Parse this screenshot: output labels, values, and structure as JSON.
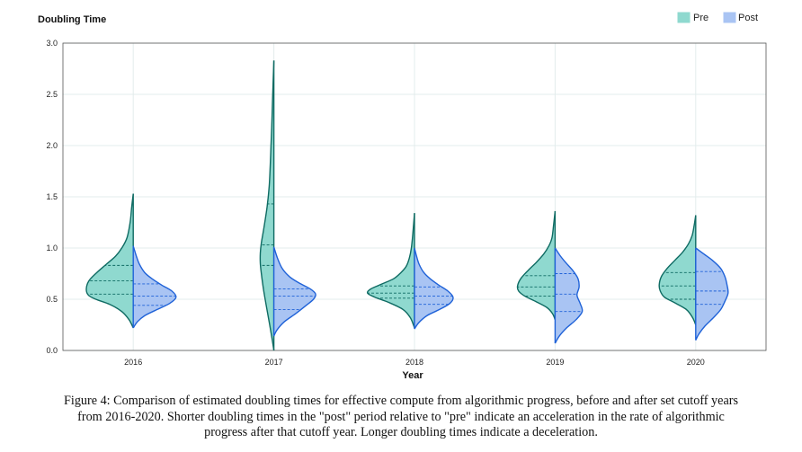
{
  "chart_data": {
    "type": "split-violin",
    "title": "Doubling Time",
    "xlabel": "Year",
    "ylabel": "Doubling Time",
    "ylim": [
      0,
      3.0
    ],
    "yticks": [
      "0.0",
      "0.5",
      "1.0",
      "1.5",
      "2.0",
      "2.5",
      "3.0"
    ],
    "categories": [
      "2016",
      "2017",
      "2018",
      "2019",
      "2020"
    ],
    "legend": {
      "position": "top-right",
      "entries": [
        "Pre",
        "Post"
      ]
    },
    "colors": {
      "pre_fill": "#8fd9cf",
      "pre_stroke": "#0f6b63",
      "post_fill": "#a9c4f3",
      "post_stroke": "#1f62d8",
      "grid": "#e3ecec"
    },
    "series": [
      {
        "name": "Pre",
        "violins": [
          {
            "year": "2016",
            "min": 0.22,
            "max": 1.53,
            "quartiles": [
              0.55,
              0.68,
              0.83
            ],
            "profile": [
              [
                0.22,
                0.0
              ],
              [
                0.3,
                0.08
              ],
              [
                0.38,
                0.22
              ],
              [
                0.45,
                0.45
              ],
              [
                0.5,
                0.72
              ],
              [
                0.54,
                0.86
              ],
              [
                0.6,
                0.9
              ],
              [
                0.68,
                0.85
              ],
              [
                0.76,
                0.7
              ],
              [
                0.84,
                0.52
              ],
              [
                0.92,
                0.34
              ],
              [
                1.0,
                0.22
              ],
              [
                1.1,
                0.12
              ],
              [
                1.25,
                0.06
              ],
              [
                1.4,
                0.03
              ],
              [
                1.53,
                0.0
              ]
            ]
          },
          {
            "year": "2017",
            "min": 0.0,
            "max": 2.83,
            "quartiles": [
              0.83,
              1.03,
              1.43
            ],
            "profile": [
              [
                0.0,
                0.0
              ],
              [
                0.1,
                0.03
              ],
              [
                0.25,
                0.08
              ],
              [
                0.45,
                0.15
              ],
              [
                0.6,
                0.2
              ],
              [
                0.75,
                0.24
              ],
              [
                0.85,
                0.26
              ],
              [
                0.95,
                0.26
              ],
              [
                1.05,
                0.24
              ],
              [
                1.2,
                0.19
              ],
              [
                1.4,
                0.13
              ],
              [
                1.6,
                0.09
              ],
              [
                1.8,
                0.07
              ],
              [
                2.0,
                0.055
              ],
              [
                2.2,
                0.04
              ],
              [
                2.45,
                0.025
              ],
              [
                2.65,
                0.012
              ],
              [
                2.83,
                0.0
              ]
            ]
          },
          {
            "year": "2018",
            "min": 0.22,
            "max": 1.34,
            "quartiles": [
              0.51,
              0.56,
              0.63
            ],
            "profile": [
              [
                0.22,
                0.0
              ],
              [
                0.32,
                0.08
              ],
              [
                0.4,
                0.22
              ],
              [
                0.47,
                0.5
              ],
              [
                0.52,
                0.76
              ],
              [
                0.56,
                0.9
              ],
              [
                0.6,
                0.84
              ],
              [
                0.65,
                0.62
              ],
              [
                0.7,
                0.4
              ],
              [
                0.76,
                0.26
              ],
              [
                0.82,
                0.16
              ],
              [
                0.9,
                0.1
              ],
              [
                1.0,
                0.06
              ],
              [
                1.15,
                0.03
              ],
              [
                1.34,
                0.0
              ]
            ]
          },
          {
            "year": "2019",
            "min": 0.3,
            "max": 1.36,
            "quartiles": [
              0.53,
              0.62,
              0.73
            ],
            "profile": [
              [
                0.3,
                0.0
              ],
              [
                0.36,
                0.05
              ],
              [
                0.42,
                0.16
              ],
              [
                0.48,
                0.38
              ],
              [
                0.53,
                0.58
              ],
              [
                0.58,
                0.7
              ],
              [
                0.63,
                0.72
              ],
              [
                0.7,
                0.66
              ],
              [
                0.78,
                0.52
              ],
              [
                0.86,
                0.36
              ],
              [
                0.94,
                0.22
              ],
              [
                1.02,
                0.12
              ],
              [
                1.1,
                0.06
              ],
              [
                1.22,
                0.03
              ],
              [
                1.36,
                0.0
              ]
            ]
          },
          {
            "year": "2020",
            "min": 0.25,
            "max": 1.32,
            "quartiles": [
              0.5,
              0.63,
              0.76
            ],
            "profile": [
              [
                0.25,
                0.0
              ],
              [
                0.32,
                0.06
              ],
              [
                0.4,
                0.18
              ],
              [
                0.47,
                0.42
              ],
              [
                0.52,
                0.6
              ],
              [
                0.58,
                0.68
              ],
              [
                0.64,
                0.7
              ],
              [
                0.72,
                0.66
              ],
              [
                0.8,
                0.55
              ],
              [
                0.88,
                0.4
              ],
              [
                0.96,
                0.25
              ],
              [
                1.04,
                0.14
              ],
              [
                1.12,
                0.07
              ],
              [
                1.22,
                0.03
              ],
              [
                1.32,
                0.0
              ]
            ]
          }
        ]
      },
      {
        "name": "Post",
        "violins": [
          {
            "year": "2016",
            "min": 0.22,
            "max": 1.02,
            "quartiles": [
              0.44,
              0.53,
              0.65
            ],
            "profile": [
              [
                0.22,
                0.0
              ],
              [
                0.28,
                0.08
              ],
              [
                0.34,
                0.22
              ],
              [
                0.4,
                0.46
              ],
              [
                0.46,
                0.7
              ],
              [
                0.52,
                0.82
              ],
              [
                0.58,
                0.74
              ],
              [
                0.64,
                0.54
              ],
              [
                0.7,
                0.36
              ],
              [
                0.76,
                0.22
              ],
              [
                0.84,
                0.12
              ],
              [
                0.92,
                0.06
              ],
              [
                1.02,
                0.0
              ]
            ]
          },
          {
            "year": "2017",
            "min": 0.14,
            "max": 1.01,
            "quartiles": [
              0.4,
              0.53,
              0.6
            ],
            "profile": [
              [
                0.14,
                0.0
              ],
              [
                0.2,
                0.06
              ],
              [
                0.28,
                0.2
              ],
              [
                0.36,
                0.42
              ],
              [
                0.44,
                0.62
              ],
              [
                0.5,
                0.76
              ],
              [
                0.55,
                0.8
              ],
              [
                0.6,
                0.7
              ],
              [
                0.66,
                0.48
              ],
              [
                0.72,
                0.3
              ],
              [
                0.8,
                0.16
              ],
              [
                0.9,
                0.07
              ],
              [
                1.01,
                0.0
              ]
            ]
          },
          {
            "year": "2018",
            "min": 0.21,
            "max": 1.0,
            "quartiles": [
              0.45,
              0.53,
              0.62
            ],
            "profile": [
              [
                0.21,
                0.0
              ],
              [
                0.27,
                0.08
              ],
              [
                0.34,
                0.24
              ],
              [
                0.4,
                0.48
              ],
              [
                0.46,
                0.68
              ],
              [
                0.52,
                0.74
              ],
              [
                0.58,
                0.64
              ],
              [
                0.64,
                0.46
              ],
              [
                0.7,
                0.3
              ],
              [
                0.76,
                0.18
              ],
              [
                0.84,
                0.09
              ],
              [
                0.92,
                0.04
              ],
              [
                1.0,
                0.0
              ]
            ]
          },
          {
            "year": "2019",
            "min": 0.07,
            "max": 1.0,
            "quartiles": [
              0.38,
              0.55,
              0.75
            ],
            "profile": [
              [
                0.07,
                0.0
              ],
              [
                0.14,
                0.08
              ],
              [
                0.22,
                0.22
              ],
              [
                0.3,
                0.4
              ],
              [
                0.38,
                0.52
              ],
              [
                0.46,
                0.48
              ],
              [
                0.54,
                0.42
              ],
              [
                0.62,
                0.46
              ],
              [
                0.7,
                0.44
              ],
              [
                0.78,
                0.34
              ],
              [
                0.86,
                0.2
              ],
              [
                0.93,
                0.09
              ],
              [
                1.0,
                0.0
              ]
            ]
          },
          {
            "year": "2020",
            "min": 0.1,
            "max": 1.0,
            "quartiles": [
              0.45,
              0.58,
              0.77
            ],
            "profile": [
              [
                0.1,
                0.0
              ],
              [
                0.16,
                0.06
              ],
              [
                0.24,
                0.18
              ],
              [
                0.32,
                0.34
              ],
              [
                0.4,
                0.48
              ],
              [
                0.48,
                0.56
              ],
              [
                0.56,
                0.62
              ],
              [
                0.64,
                0.6
              ],
              [
                0.72,
                0.56
              ],
              [
                0.8,
                0.48
              ],
              [
                0.88,
                0.32
              ],
              [
                0.94,
                0.16
              ],
              [
                1.0,
                0.0
              ]
            ]
          }
        ]
      }
    ]
  },
  "caption": {
    "line1": "Figure 4: Comparison of estimated doubling times for effective compute from algorithmic progress, before and after set cutoff years",
    "line2": "from 2016-2020. Shorter doubling times in the \"post\" period relative to \"pre\" indicate an acceleration in the rate of algorithmic",
    "line3": "progress after that cutoff year. Longer doubling times indicate a deceleration."
  }
}
